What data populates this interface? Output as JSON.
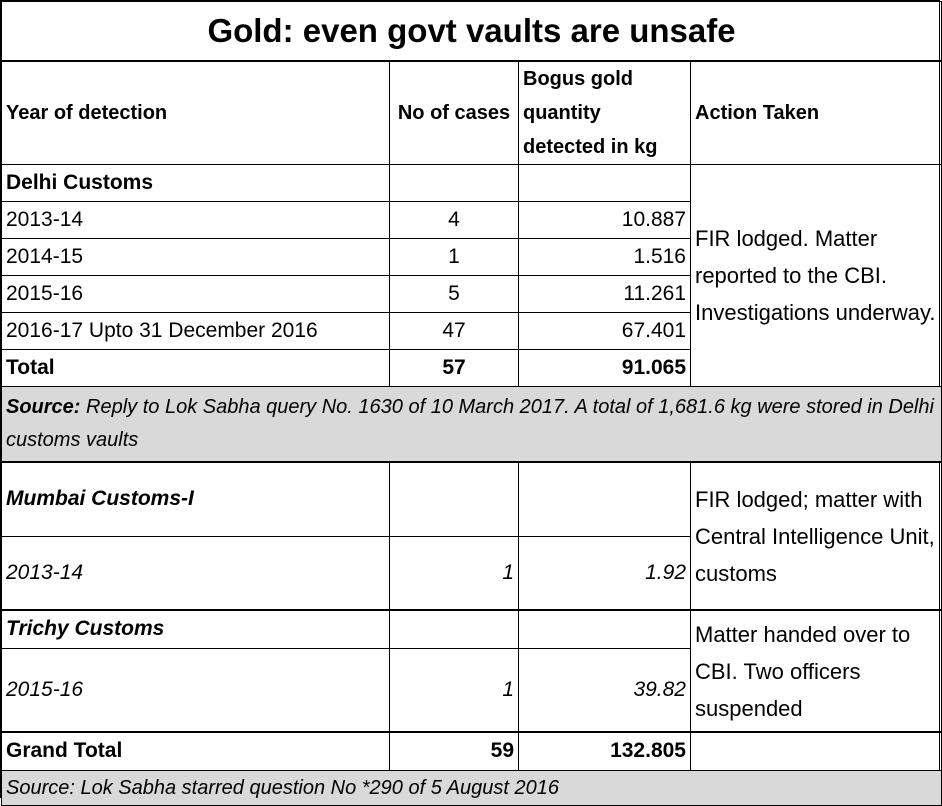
{
  "title": "Gold: even govt vaults are unsafe",
  "header": {
    "year": "Year of detection",
    "cases": "No of cases",
    "quantity": "Bogus gold quantity detected in kg",
    "action": "Action Taken"
  },
  "delhi": {
    "label": "Delhi Customs",
    "action": "FIR lodged. Matter reported to the CBI. Investigations underway.",
    "rows": [
      {
        "year": "2013-14",
        "cases": "4",
        "qty": "10.887"
      },
      {
        "year": "2014-15",
        "cases": "1",
        "qty": "1.516"
      },
      {
        "year": "2015-16",
        "cases": "5",
        "qty": "11.261"
      },
      {
        "year": "2016-17 Upto 31 December 2016",
        "cases": "47",
        "qty": "67.401"
      }
    ],
    "total": {
      "label": "Total",
      "cases": "57",
      "qty": "91.065"
    },
    "source_label": "Source:",
    "source_text": " Reply to Lok Sabha query No. 1630 of 10 March 2017. A total of 1,681.6 kg were stored in Delhi customs vaults"
  },
  "mumbai": {
    "label": "Mumbai Customs-I",
    "action": "FIR lodged; matter with Central Intelligence Unit, customs",
    "row": {
      "year": "2013-14",
      "cases": "1",
      "qty": "1.92"
    }
  },
  "trichy": {
    "label": "Trichy Customs",
    "action": "Matter handed over to CBI. Two officers suspended",
    "row": {
      "year": "2015-16",
      "cases": "1",
      "qty": "39.82"
    }
  },
  "grand_total": {
    "label": "Grand Total",
    "cases": "59",
    "qty": "132.805"
  },
  "footer_source": "Source: Lok Sabha starred question No *290 of 5 August 2016"
}
